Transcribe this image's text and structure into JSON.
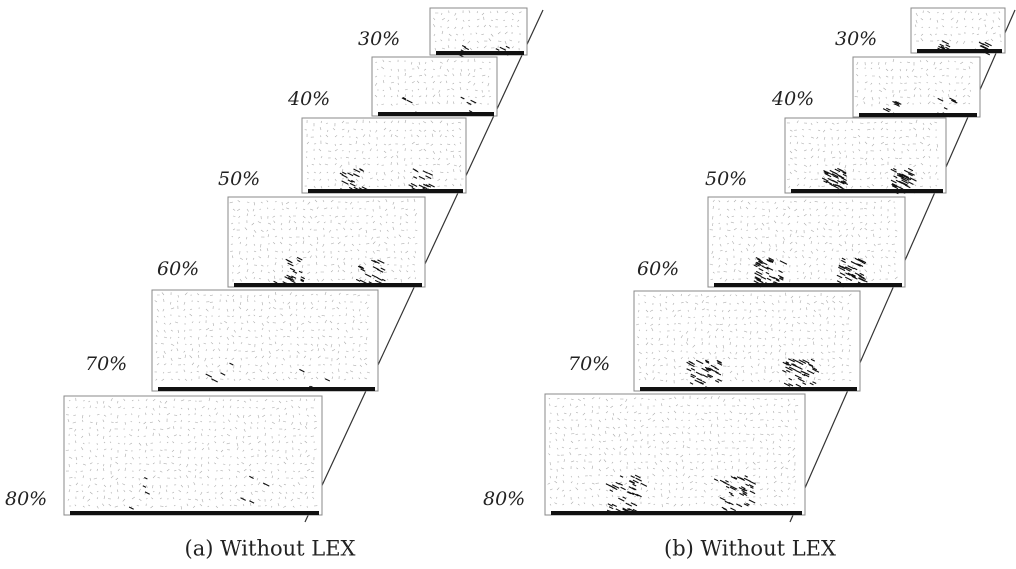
{
  "panels": [
    {
      "labels": [
        "30%",
        "40%",
        "50%",
        "60%",
        "70%",
        "80%"
      ],
      "caption": "(a) Without LEX"
    },
    {
      "labels": [
        "30%",
        "40%",
        "50%",
        "60%",
        "70%",
        "80%"
      ],
      "caption": "(b) Without LEX"
    }
  ]
}
